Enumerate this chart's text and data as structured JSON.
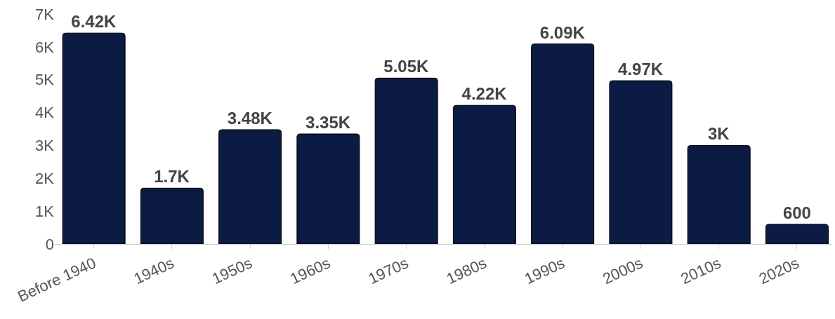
{
  "chart_data": {
    "type": "bar",
    "categories": [
      "Before 1940",
      "1940s",
      "1950s",
      "1960s",
      "1970s",
      "1980s",
      "1990s",
      "2000s",
      "2010s",
      "2020s"
    ],
    "values": [
      6420,
      1700,
      3480,
      3350,
      5050,
      4220,
      6090,
      4970,
      3000,
      600
    ],
    "value_labels": [
      "6.42K",
      "1.7K",
      "3.48K",
      "3.35K",
      "5.05K",
      "4.22K",
      "6.09K",
      "4.97K",
      "3K",
      "600"
    ],
    "color": "#0b1b44",
    "ylim": [
      0,
      7000
    ],
    "yticks": [
      0,
      {
        "value": 1000,
        "label": "1K"
      },
      {
        "value": 2000,
        "label": "2K"
      },
      {
        "value": 3000,
        "label": "3K"
      },
      {
        "value": 4000,
        "label": "4K"
      },
      {
        "value": 5000,
        "label": "5K"
      },
      {
        "value": 6000,
        "label": "6K"
      },
      {
        "value": 7000,
        "label": "7K"
      }
    ],
    "grid": false
  }
}
